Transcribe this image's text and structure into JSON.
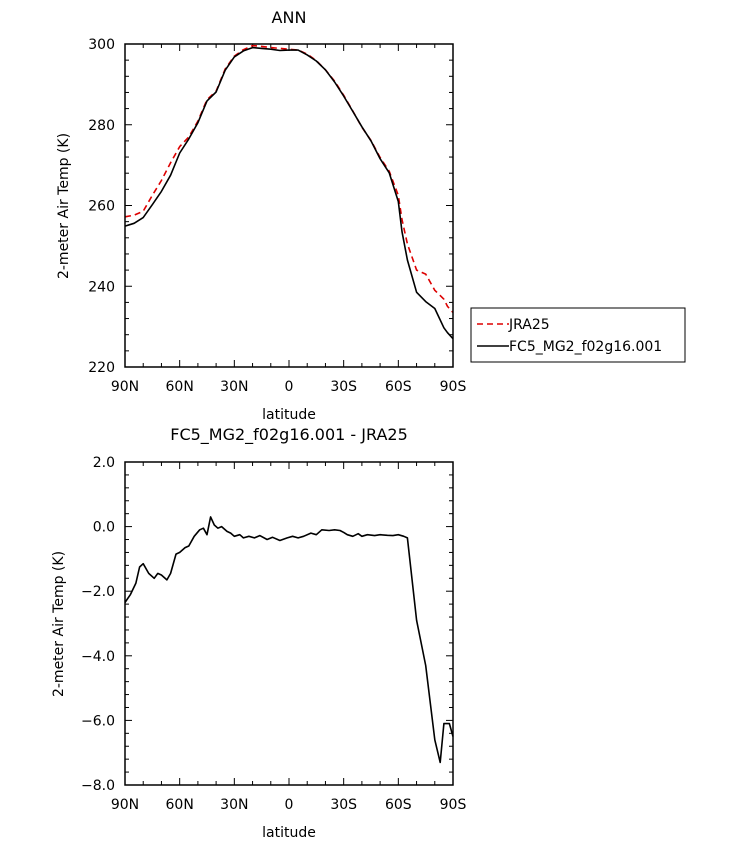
{
  "chart_data": [
    {
      "type": "line",
      "title": "ANN",
      "xlabel": "latitude",
      "ylabel": "2-meter Air Temp (K)",
      "x_tick_labels": [
        "90N",
        "60N",
        "30N",
        "0",
        "30S",
        "60S",
        "90S"
      ],
      "x_ticks": [
        90,
        60,
        30,
        0,
        -30,
        -60,
        -90
      ],
      "xlim": [
        90,
        -90
      ],
      "ylim": [
        220,
        300
      ],
      "y_ticks": [
        220,
        240,
        260,
        280,
        300
      ],
      "grid": false,
      "legend_position": "right-outside",
      "series": [
        {
          "name": "JRA25",
          "color": "#dd0000",
          "dash": "dashed",
          "x": [
            90,
            85,
            80,
            75,
            70,
            65,
            60,
            55,
            50,
            45,
            40,
            35,
            30,
            25,
            20,
            15,
            10,
            5,
            0,
            -5,
            -10,
            -15,
            -20,
            -25,
            -30,
            -35,
            -40,
            -45,
            -50,
            -55,
            -60,
            -62,
            -65,
            -70,
            -75,
            -80,
            -85,
            -87,
            -90
          ],
          "values": [
            257.2,
            257.6,
            258.6,
            262.5,
            266.2,
            270.6,
            274.6,
            277.0,
            280.9,
            286.2,
            288.3,
            293.8,
            297.0,
            298.6,
            299.6,
            299.4,
            299.1,
            298.9,
            298.7,
            298.5,
            297.5,
            295.9,
            293.6,
            290.8,
            287.3,
            283.4,
            279.4,
            276.1,
            271.9,
            268.5,
            262.5,
            256.5,
            250.5,
            244.0,
            243.0,
            239.0,
            236.8,
            235.0,
            233.5
          ]
        },
        {
          "name": "FC5_MG2_f02g16.001",
          "color": "#000000",
          "dash": "solid",
          "x": [
            90,
            85,
            80,
            75,
            70,
            65,
            60,
            55,
            50,
            45,
            40,
            35,
            30,
            25,
            20,
            15,
            10,
            5,
            0,
            -5,
            -10,
            -15,
            -20,
            -25,
            -30,
            -35,
            -40,
            -45,
            -50,
            -55,
            -60,
            -62,
            -65,
            -70,
            -75,
            -80,
            -85,
            -87,
            -90
          ],
          "values": [
            254.9,
            255.6,
            257.0,
            260.2,
            263.5,
            267.5,
            273.0,
            276.5,
            280.5,
            285.9,
            288.1,
            293.5,
            296.8,
            298.3,
            299.1,
            298.9,
            298.7,
            298.4,
            298.5,
            298.5,
            297.3,
            295.8,
            293.6,
            290.6,
            287.1,
            283.3,
            279.5,
            276.0,
            271.6,
            268.1,
            261.0,
            253.5,
            246.5,
            238.5,
            236.2,
            234.5,
            229.7,
            228.5,
            227.0
          ]
        }
      ]
    },
    {
      "type": "line",
      "title": "FC5_MG2_f02g16.001 - JRA25",
      "xlabel": "latitude",
      "ylabel": "2-meter Air Temp (K)",
      "x_tick_labels": [
        "90N",
        "60N",
        "30N",
        "0",
        "30S",
        "60S",
        "90S"
      ],
      "x_ticks": [
        90,
        60,
        30,
        0,
        -30,
        -60,
        -90
      ],
      "xlim": [
        90,
        -90
      ],
      "ylim": [
        -8,
        2
      ],
      "y_ticks": [
        -8,
        -6,
        -4,
        -2,
        0,
        2
      ],
      "y_tick_labels": [
        "−8.0",
        "−6.0",
        "−4.0",
        "−2.0",
        "0.0",
        "2.0"
      ],
      "grid": false,
      "series": [
        {
          "color": "#000000",
          "dash": "solid",
          "x": [
            90,
            87,
            84,
            82,
            80,
            77,
            74,
            72,
            70,
            67,
            65,
            62,
            60,
            57,
            55,
            52,
            49,
            47,
            45,
            43,
            41,
            39,
            37,
            34,
            32,
            30,
            27,
            25,
            22,
            19,
            16,
            12,
            9,
            5,
            1,
            -2,
            -5,
            -8,
            -12,
            -15,
            -18,
            -22,
            -25,
            -28,
            -30,
            -32,
            -35,
            -38,
            -40,
            -43,
            -47,
            -50,
            -54,
            -57,
            -60,
            -63,
            -65,
            -70,
            -75,
            -80,
            -83,
            -85,
            -88,
            -90
          ],
          "values": [
            -2.35,
            -2.1,
            -1.75,
            -1.25,
            -1.15,
            -1.45,
            -1.6,
            -1.45,
            -1.5,
            -1.65,
            -1.45,
            -0.85,
            -0.8,
            -0.65,
            -0.6,
            -0.3,
            -0.1,
            -0.05,
            -0.25,
            0.3,
            0.05,
            -0.05,
            0.0,
            -0.15,
            -0.2,
            -0.3,
            -0.25,
            -0.35,
            -0.3,
            -0.35,
            -0.28,
            -0.4,
            -0.33,
            -0.43,
            -0.35,
            -0.3,
            -0.35,
            -0.3,
            -0.2,
            -0.25,
            -0.1,
            -0.12,
            -0.1,
            -0.12,
            -0.18,
            -0.25,
            -0.3,
            -0.22,
            -0.3,
            -0.25,
            -0.28,
            -0.25,
            -0.27,
            -0.28,
            -0.25,
            -0.3,
            -0.35,
            -2.9,
            -4.3,
            -6.6,
            -7.3,
            -6.1,
            -6.1,
            -6.5
          ]
        }
      ]
    }
  ]
}
